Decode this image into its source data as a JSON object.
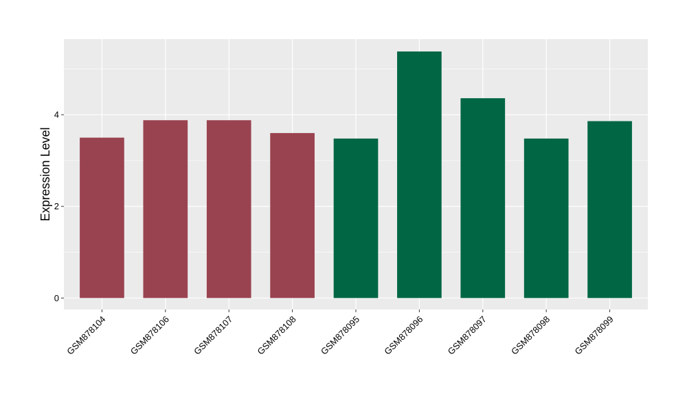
{
  "chart_data": {
    "type": "bar",
    "title": "",
    "xlabel": "",
    "ylabel": "Expression Level",
    "categories": [
      "GSM878104",
      "GSM878106",
      "GSM878107",
      "GSM878108",
      "GSM878095",
      "GSM878096",
      "GSM878097",
      "GSM878098",
      "GSM878099"
    ],
    "values": [
      3.5,
      3.88,
      3.88,
      3.6,
      3.48,
      5.38,
      4.36,
      3.48,
      3.86
    ],
    "bar_colors": [
      "#9a4350",
      "#9a4350",
      "#9a4350",
      "#9a4350",
      "#006644",
      "#006644",
      "#006644",
      "#006644",
      "#006644"
    ],
    "ylim": [
      -0.25,
      5.65
    ],
    "yticks": [
      0,
      2,
      4
    ],
    "grid": true,
    "legend": "none",
    "panel_background": "#ebebeb",
    "grid_color": "#ffffff"
  }
}
